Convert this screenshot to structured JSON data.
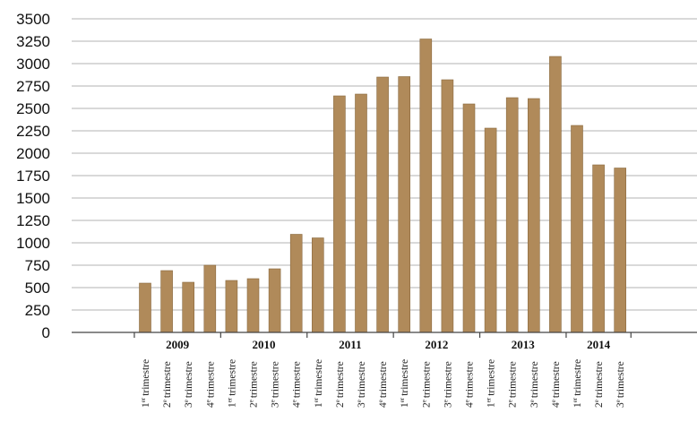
{
  "colors": {
    "bar": "#b08a5a",
    "bar_edge": "#8a6a40",
    "grid": "#9a9a9a",
    "axis": "#444444",
    "text": "#111111"
  },
  "chart_data": {
    "type": "bar",
    "title": "",
    "xlabel": "",
    "ylabel": "",
    "ylim": [
      0,
      3500
    ],
    "yticks": [
      {
        "value": 0,
        "label": "0"
      },
      {
        "value": 250,
        "label": "250"
      },
      {
        "value": 500,
        "label": "500"
      },
      {
        "value": 750,
        "label": "750"
      },
      {
        "value": 1000,
        "label": "1000"
      },
      {
        "value": 1250,
        "label": "1250"
      },
      {
        "value": 1500,
        "label": "1500"
      },
      {
        "value": 1750,
        "label": "1750"
      },
      {
        "value": 2000,
        "label": "2000"
      },
      {
        "value": 2250,
        "label": "2250"
      },
      {
        "value": 2500,
        "label": "2500"
      },
      {
        "value": 2750,
        "label": "2750"
      },
      {
        "value": 3000,
        "label": "3000"
      },
      {
        "value": 3250,
        "label": "3250"
      },
      {
        "value": 3500,
        "label": "3500"
      }
    ],
    "grid": true,
    "legend": "none",
    "groups": [
      {
        "year": "2009",
        "quarters": [
          {
            "num": "1",
            "sup": "er",
            "word": "trimestre",
            "value": 550
          },
          {
            "num": "2",
            "sup": "e",
            "word": "trimestre",
            "value": 690
          },
          {
            "num": "3",
            "sup": "e",
            "word": "trimestre",
            "value": 560
          },
          {
            "num": "4",
            "sup": "e",
            "word": "trimestre",
            "value": 750
          }
        ]
      },
      {
        "year": "2010",
        "quarters": [
          {
            "num": "1",
            "sup": "er",
            "word": "trimestre",
            "value": 580
          },
          {
            "num": "2",
            "sup": "e",
            "word": "trimestre",
            "value": 600
          },
          {
            "num": "3",
            "sup": "e",
            "word": "trimestre",
            "value": 710
          },
          {
            "num": "4",
            "sup": "e",
            "word": "trimestre",
            "value": 1095
          }
        ]
      },
      {
        "year": "2011",
        "quarters": [
          {
            "num": "1",
            "sup": "er",
            "word": "trimestre",
            "value": 1055
          },
          {
            "num": "2",
            "sup": "e",
            "word": "trimestre",
            "value": 2640
          },
          {
            "num": "3",
            "sup": "e",
            "word": "trimestre",
            "value": 2660
          },
          {
            "num": "4",
            "sup": "e",
            "word": "trimestre",
            "value": 2850
          }
        ]
      },
      {
        "year": "2012",
        "quarters": [
          {
            "num": "1",
            "sup": "er",
            "word": "trimestre",
            "value": 2855
          },
          {
            "num": "2",
            "sup": "e",
            "word": "trimestre",
            "value": 3275
          },
          {
            "num": "3",
            "sup": "e",
            "word": "trimestre",
            "value": 2820
          },
          {
            "num": "4",
            "sup": "e",
            "word": "trimestre",
            "value": 2550
          }
        ]
      },
      {
        "year": "2013",
        "quarters": [
          {
            "num": "1",
            "sup": "er",
            "word": "trimestre",
            "value": 2280
          },
          {
            "num": "2",
            "sup": "e",
            "word": "trimestre",
            "value": 2620
          },
          {
            "num": "3",
            "sup": "e",
            "word": "trimestre",
            "value": 2610
          },
          {
            "num": "4",
            "sup": "e",
            "word": "trimestre",
            "value": 3080
          }
        ]
      },
      {
        "year": "2014",
        "quarters": [
          {
            "num": "1",
            "sup": "er",
            "word": "trimestre",
            "value": 2310
          },
          {
            "num": "2",
            "sup": "e",
            "word": "trimestre",
            "value": 1870
          },
          {
            "num": "3",
            "sup": "e",
            "word": "trimestre",
            "value": 1835
          }
        ]
      }
    ]
  }
}
